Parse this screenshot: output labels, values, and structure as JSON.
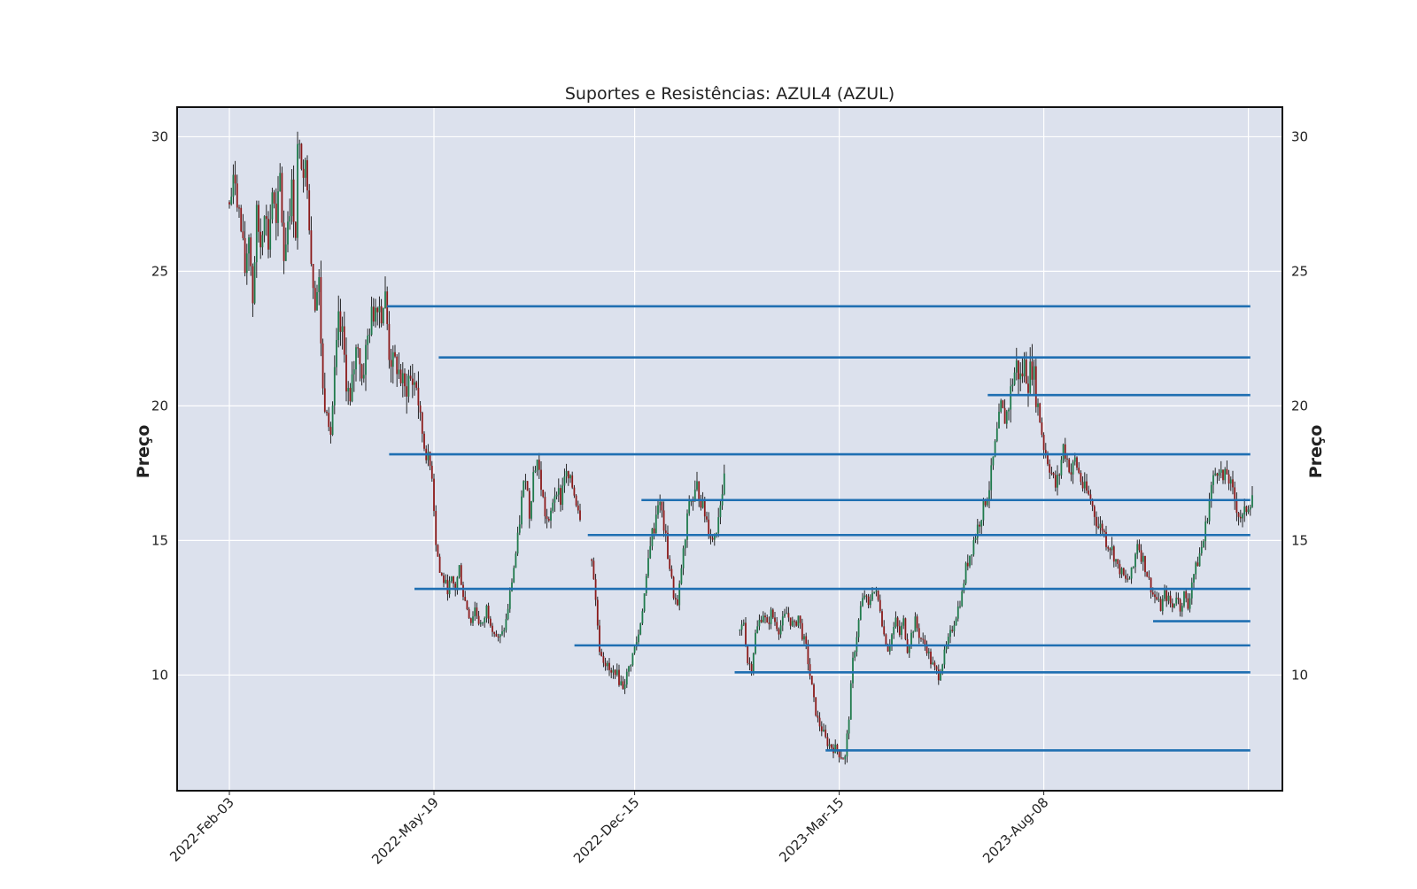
{
  "chart_data": {
    "type": "candlestick",
    "title": "Suportes e Resistências: AZUL4 (AZUL)",
    "ylabel_left": "Preço",
    "ylabel_right": "Preço",
    "xlabel": "",
    "ylim": [
      5.7,
      31.1
    ],
    "y_ticks": [
      10,
      15,
      20,
      25,
      30
    ],
    "x_tick_labels": [
      "2022-Feb-03",
      "2022-May-19",
      "2022-Dec-15",
      "2023-Mar-15",
      "2023-Aug-08"
    ],
    "grid": true,
    "legend": "none",
    "colors": {
      "background": "#dce1ed",
      "grid": "#ffffff",
      "up_candle": "#1f7a4c",
      "down_candle": "#8b1a1a",
      "level_line": "#1f6fb2"
    },
    "support_resistance_levels": [
      {
        "level": 23.7,
        "start_x": "2022-Apr-25"
      },
      {
        "level": 21.8,
        "start_x": "2022-May-24"
      },
      {
        "level": 20.4,
        "start_x": "2023-Jun-29"
      },
      {
        "level": 18.2,
        "start_x": "2022-Apr-26"
      },
      {
        "level": 16.5,
        "start_x": "2022-Dec-18"
      },
      {
        "level": 15.2,
        "start_x": "2022-Oct-27"
      },
      {
        "level": 13.2,
        "start_x": "2022-May-09"
      },
      {
        "level": 12.0,
        "start_x": "2023-Oct-25"
      },
      {
        "level": 11.1,
        "start_x": "2022-Oct-13"
      },
      {
        "level": 10.1,
        "start_x": "2023-Jan-28"
      },
      {
        "level": 7.2,
        "start_x": "2023-Mar-09"
      }
    ],
    "price_path": [
      [
        0,
        27.5
      ],
      [
        3,
        28.5
      ],
      [
        6,
        26.5
      ],
      [
        8,
        25.0
      ],
      [
        10,
        26.5
      ],
      [
        12,
        24.0
      ],
      [
        14,
        27.0
      ],
      [
        16,
        26.0
      ],
      [
        18,
        27.5
      ],
      [
        20,
        26.0
      ],
      [
        22,
        28.0
      ],
      [
        24,
        26.5
      ],
      [
        26,
        28.5
      ],
      [
        28,
        25.5
      ],
      [
        30,
        27.0
      ],
      [
        32,
        28.0
      ],
      [
        34,
        26.5
      ],
      [
        35,
        29.5
      ],
      [
        38,
        29.0
      ],
      [
        40,
        28.5
      ],
      [
        42,
        25.5
      ],
      [
        44,
        24.0
      ],
      [
        46,
        24.5
      ],
      [
        48,
        20.5
      ],
      [
        50,
        20.0
      ],
      [
        52,
        19.0
      ],
      [
        54,
        21.0
      ],
      [
        56,
        23.0
      ],
      [
        58,
        22.5
      ],
      [
        60,
        21.0
      ],
      [
        62,
        20.0
      ],
      [
        64,
        21.5
      ],
      [
        66,
        22.5
      ],
      [
        68,
        21.0
      ],
      [
        70,
        22.0
      ],
      [
        72,
        23.0
      ],
      [
        74,
        23.5
      ],
      [
        76,
        24.0
      ],
      [
        78,
        23.5
      ],
      [
        80,
        24.0
      ],
      [
        82,
        22.0
      ],
      [
        84,
        21.5
      ],
      [
        86,
        21.5
      ],
      [
        88,
        21.0
      ],
      [
        90,
        20.5
      ],
      [
        92,
        21.0
      ],
      [
        96,
        20.8
      ],
      [
        98,
        19.5
      ],
      [
        100,
        18.5
      ],
      [
        104,
        17.5
      ],
      [
        106,
        15.0
      ],
      [
        108,
        13.8
      ],
      [
        110,
        13.5
      ],
      [
        112,
        13.2
      ],
      [
        114,
        13.5
      ],
      [
        116,
        13.2
      ],
      [
        118,
        14.0
      ],
      [
        120,
        13.0
      ],
      [
        122,
        12.5
      ],
      [
        124,
        12.0
      ],
      [
        126,
        12.5
      ],
      [
        128,
        12.0
      ],
      [
        130,
        11.8
      ],
      [
        132,
        12.5
      ],
      [
        134,
        12.0
      ],
      [
        136,
        11.6
      ],
      [
        138,
        11.3
      ],
      [
        140,
        11.5
      ],
      [
        142,
        12.0
      ],
      [
        144,
        13.0
      ],
      [
        146,
        14.0
      ],
      [
        148,
        15.0
      ],
      [
        150,
        16.5
      ],
      [
        152,
        17.5
      ],
      [
        154,
        16.0
      ],
      [
        156,
        17.5
      ],
      [
        158,
        18.0
      ],
      [
        160,
        17.0
      ],
      [
        162,
        16.0
      ],
      [
        164,
        15.5
      ],
      [
        166,
        16.5
      ],
      [
        168,
        17.0
      ],
      [
        170,
        16.5
      ],
      [
        172,
        17.5
      ],
      [
        176,
        17.0
      ],
      [
        178,
        16.5
      ],
      [
        180,
        16.0
      ],
      [
        186,
        14.5
      ],
      [
        190,
        11.0
      ],
      [
        192,
        10.6
      ],
      [
        194,
        10.3
      ],
      [
        196,
        10.0
      ],
      [
        198,
        10.2
      ],
      [
        200,
        9.8
      ],
      [
        202,
        9.6
      ],
      [
        204,
        10.0
      ],
      [
        206,
        10.5
      ],
      [
        208,
        11.0
      ],
      [
        210,
        11.5
      ],
      [
        212,
        12.5
      ],
      [
        214,
        13.5
      ],
      [
        216,
        15.0
      ],
      [
        218,
        15.5
      ],
      [
        220,
        16.5
      ],
      [
        222,
        16.0
      ],
      [
        224,
        15.0
      ],
      [
        226,
        14.0
      ],
      [
        228,
        13.0
      ],
      [
        230,
        12.5
      ],
      [
        232,
        14.0
      ],
      [
        234,
        15.0
      ],
      [
        236,
        16.5
      ],
      [
        238,
        16.5
      ],
      [
        240,
        17.0
      ],
      [
        242,
        16.5
      ],
      [
        244,
        16.0
      ],
      [
        246,
        15.5
      ],
      [
        248,
        15.0
      ],
      [
        250,
        15.5
      ],
      [
        252,
        16.5
      ],
      [
        254,
        17.2
      ],
      [
        262,
        11.6
      ],
      [
        264,
        12.0
      ],
      [
        266,
        10.5
      ],
      [
        268,
        10.3
      ],
      [
        270,
        11.5
      ],
      [
        272,
        12.0
      ],
      [
        274,
        12.3
      ],
      [
        276,
        11.8
      ],
      [
        278,
        12.3
      ],
      [
        280,
        12.0
      ],
      [
        282,
        11.7
      ],
      [
        284,
        12.0
      ],
      [
        286,
        12.3
      ],
      [
        288,
        12.0
      ],
      [
        290,
        11.8
      ],
      [
        292,
        12.2
      ],
      [
        294,
        11.5
      ],
      [
        296,
        11.0
      ],
      [
        298,
        10.0
      ],
      [
        300,
        9.0
      ],
      [
        302,
        8.3
      ],
      [
        304,
        8.0
      ],
      [
        306,
        7.6
      ],
      [
        308,
        7.4
      ],
      [
        310,
        7.3
      ],
      [
        312,
        7.2
      ],
      [
        314,
        7.0
      ],
      [
        316,
        6.9
      ],
      [
        318,
        8.5
      ],
      [
        320,
        10.5
      ],
      [
        322,
        11.5
      ],
      [
        324,
        12.5
      ],
      [
        326,
        13.0
      ],
      [
        328,
        12.5
      ],
      [
        330,
        13.2
      ],
      [
        332,
        13.0
      ],
      [
        334,
        12.5
      ],
      [
        336,
        11.5
      ],
      [
        338,
        11.0
      ],
      [
        340,
        11.5
      ],
      [
        342,
        12.0
      ],
      [
        344,
        11.5
      ],
      [
        346,
        12.0
      ],
      [
        348,
        11.0
      ],
      [
        350,
        11.5
      ],
      [
        352,
        12.0
      ],
      [
        354,
        11.5
      ],
      [
        356,
        11.2
      ],
      [
        358,
        11.0
      ],
      [
        360,
        10.5
      ],
      [
        362,
        10.2
      ],
      [
        364,
        10.0
      ],
      [
        366,
        10.5
      ],
      [
        368,
        11.0
      ],
      [
        370,
        11.5
      ],
      [
        372,
        12.0
      ],
      [
        374,
        12.5
      ],
      [
        376,
        13.0
      ],
      [
        378,
        14.0
      ],
      [
        380,
        14.5
      ],
      [
        382,
        15.0
      ],
      [
        384,
        15.5
      ],
      [
        386,
        16.0
      ],
      [
        388,
        16.5
      ],
      [
        390,
        17.0
      ],
      [
        392,
        18.0
      ],
      [
        394,
        19.0
      ],
      [
        396,
        20.0
      ],
      [
        398,
        19.5
      ],
      [
        400,
        20.0
      ],
      [
        402,
        21.0
      ],
      [
        404,
        21.5
      ],
      [
        406,
        21.0
      ],
      [
        408,
        21.5
      ],
      [
        410,
        21.0
      ],
      [
        412,
        21.5
      ],
      [
        414,
        20.5
      ],
      [
        416,
        19.5
      ],
      [
        418,
        18.5
      ],
      [
        420,
        18.0
      ],
      [
        422,
        17.5
      ],
      [
        424,
        17.0
      ],
      [
        426,
        17.5
      ],
      [
        428,
        18.5
      ],
      [
        430,
        18.0
      ],
      [
        432,
        17.5
      ],
      [
        434,
        18.0
      ],
      [
        436,
        17.5
      ],
      [
        438,
        17.0
      ],
      [
        440,
        16.8
      ],
      [
        442,
        16.5
      ],
      [
        444,
        16.0
      ],
      [
        446,
        15.5
      ],
      [
        448,
        15.5
      ],
      [
        450,
        15.0
      ],
      [
        452,
        14.8
      ],
      [
        454,
        14.5
      ],
      [
        456,
        14.0
      ],
      [
        458,
        13.8
      ],
      [
        460,
        13.5
      ],
      [
        462,
        13.6
      ],
      [
        464,
        14.0
      ],
      [
        466,
        15.0
      ],
      [
        468,
        14.5
      ],
      [
        470,
        14.0
      ],
      [
        472,
        13.5
      ],
      [
        474,
        13.0
      ],
      [
        476,
        12.8
      ],
      [
        478,
        12.5
      ],
      [
        480,
        13.0
      ],
      [
        482,
        12.8
      ],
      [
        484,
        12.5
      ],
      [
        486,
        13.0
      ],
      [
        488,
        12.5
      ],
      [
        490,
        13.0
      ],
      [
        492,
        12.5
      ],
      [
        494,
        13.5
      ],
      [
        496,
        14.0
      ],
      [
        498,
        14.5
      ],
      [
        500,
        15.0
      ],
      [
        502,
        16.0
      ],
      [
        504,
        17.0
      ],
      [
        506,
        17.5
      ],
      [
        508,
        17.8
      ],
      [
        510,
        17.2
      ],
      [
        512,
        17.5
      ],
      [
        514,
        17.0
      ],
      [
        516,
        16.5
      ],
      [
        518,
        16.0
      ],
      [
        520,
        15.8
      ],
      [
        522,
        16.2
      ],
      [
        524,
        16.5
      ],
      [
        526,
        17.0
      ]
    ]
  }
}
